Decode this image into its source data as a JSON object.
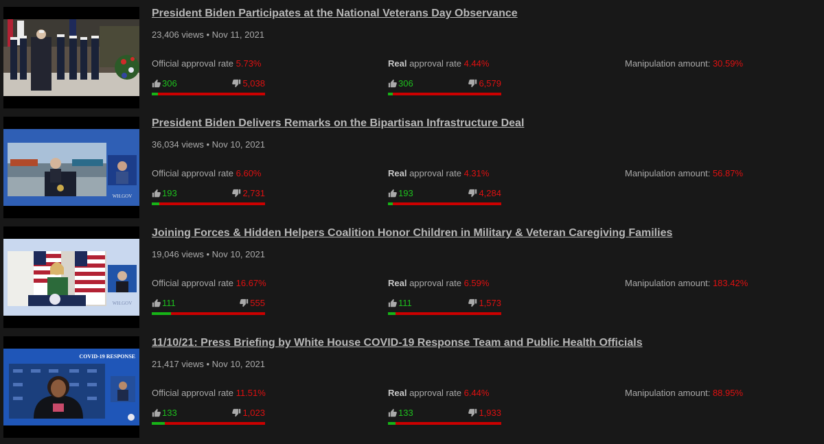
{
  "videos": [
    {
      "title": "President Biden Participates at the National Veterans Day Observance",
      "views": "23,406 views",
      "date": "Nov 11, 2021",
      "official_label": "Official approval rate",
      "official_rate": "5.73%",
      "real_label_bold": "Real",
      "real_label_rest": " approval rate",
      "real_rate": "4.44%",
      "manip_label": "Manipulation amount:",
      "manip_value": "30.59%",
      "official_likes": "306",
      "official_dislikes": "5,038",
      "real_likes": "306",
      "real_dislikes": "6,579",
      "official_fraction": 0.0573,
      "real_fraction": 0.0444
    },
    {
      "title": "President Biden Delivers Remarks on the Bipartisan Infrastructure Deal",
      "views": "36,034 views",
      "date": "Nov 10, 2021",
      "official_label": "Official approval rate",
      "official_rate": "6.60%",
      "real_label_bold": "Real",
      "real_label_rest": " approval rate",
      "real_rate": "4.31%",
      "manip_label": "Manipulation amount:",
      "manip_value": "56.87%",
      "official_likes": "193",
      "official_dislikes": "2,731",
      "real_likes": "193",
      "real_dislikes": "4,284",
      "official_fraction": 0.066,
      "real_fraction": 0.0431,
      "thumb_caption": "WH.GOV"
    },
    {
      "title": "Joining Forces & Hidden Helpers Coalition Honor Children in Military & Veteran Caregiving Families",
      "views": "19,046 views",
      "date": "Nov 10, 2021",
      "official_label": "Official approval rate",
      "official_rate": "16.67%",
      "real_label_bold": "Real",
      "real_label_rest": " approval rate",
      "real_rate": "6.59%",
      "manip_label": "Manipulation amount:",
      "manip_value": "183.42%",
      "official_likes": "111",
      "official_dislikes": "555",
      "real_likes": "111",
      "real_dislikes": "1,573",
      "official_fraction": 0.1667,
      "real_fraction": 0.0659,
      "thumb_caption": "WH.GOV"
    },
    {
      "title": "11/10/21: Press Briefing by White House COVID-19 Response Team and Public Health Officials",
      "views": "21,417 views",
      "date": "Nov 10, 2021",
      "official_label": "Official approval rate",
      "official_rate": "11.51%",
      "real_label_bold": "Real",
      "real_label_rest": " approval rate",
      "real_rate": "6.44%",
      "manip_label": "Manipulation amount:",
      "manip_value": "88.95%",
      "official_likes": "133",
      "official_dislikes": "1,023",
      "real_likes": "133",
      "real_dislikes": "1,933",
      "official_fraction": 0.1151,
      "real_fraction": 0.0644,
      "thumb_caption": "COVID-19 RESPONSE"
    }
  ],
  "colors": {
    "background": "#181818",
    "negative": "#e01010",
    "positive": "#1ec01e",
    "bar_bg": "#cc0000",
    "bar_fill": "#17b417"
  }
}
